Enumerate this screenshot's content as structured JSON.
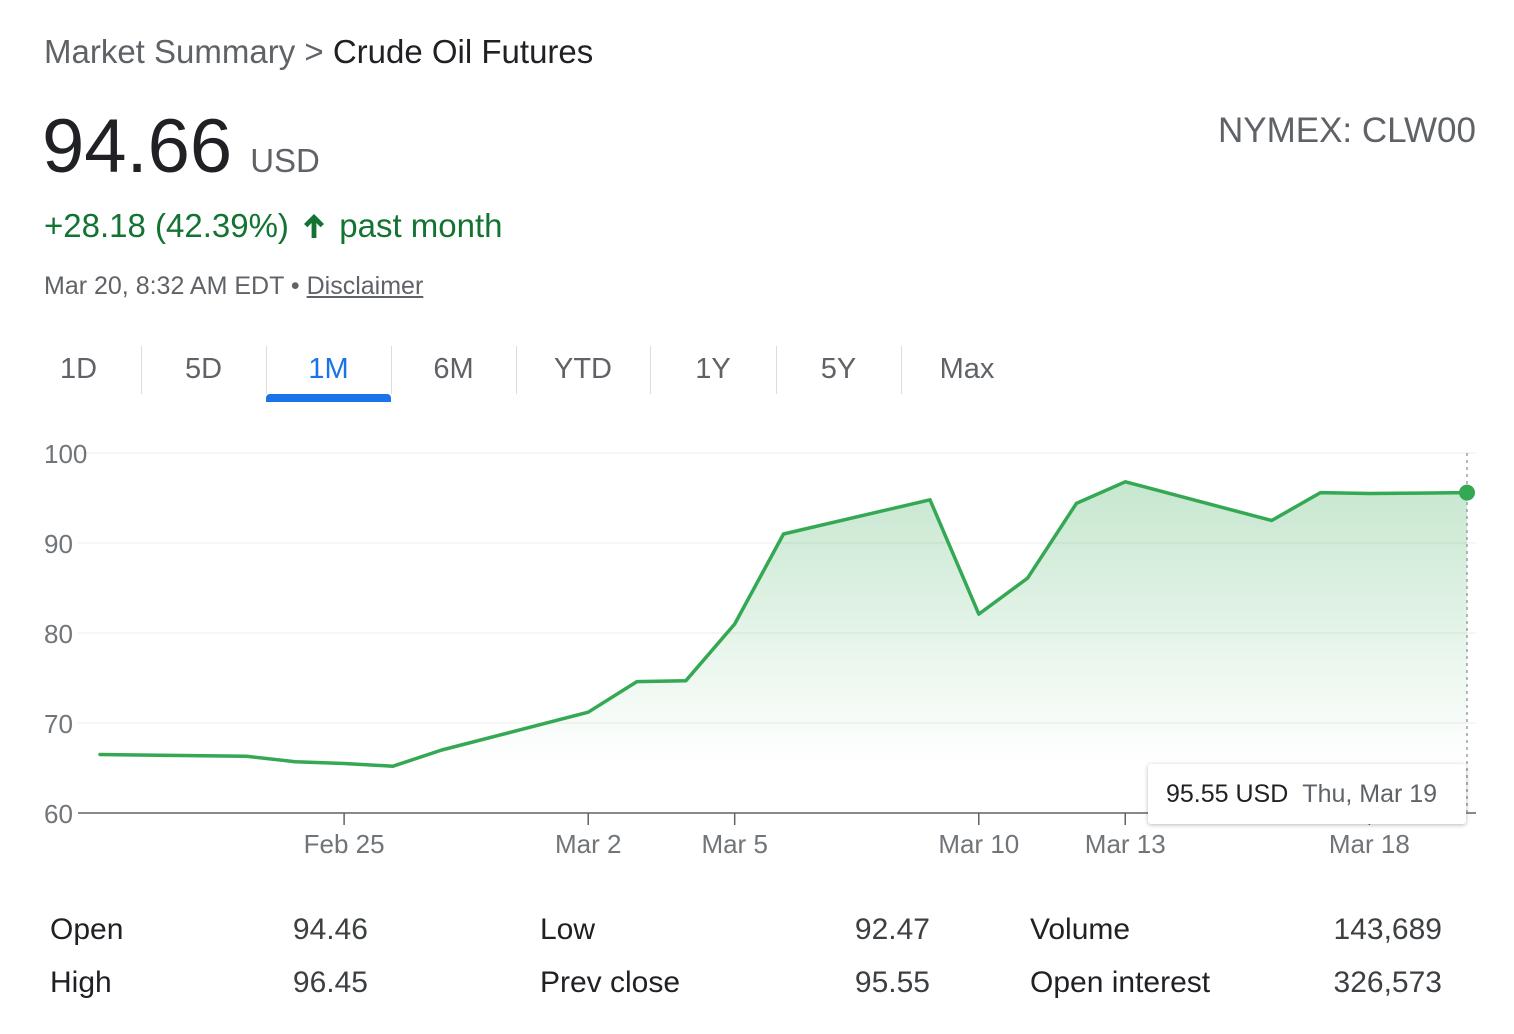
{
  "breadcrumb": {
    "root": "Market Summary",
    "separator": ">",
    "current": "Crude Oil Futures"
  },
  "quote": {
    "price": "94.66",
    "currency": "USD",
    "ticker": "NYMEX: CLW00",
    "change": "+28.18 (42.39%)",
    "change_period": "past month",
    "timestamp": "Mar 20, 8:32 AM EDT",
    "bullet": "•",
    "disclaimer": "Disclaimer"
  },
  "tabs": [
    {
      "label": "1D"
    },
    {
      "label": "5D"
    },
    {
      "label": "1M",
      "active": true
    },
    {
      "label": "6M"
    },
    {
      "label": "YTD"
    },
    {
      "label": "1Y"
    },
    {
      "label": "5Y"
    },
    {
      "label": "Max"
    }
  ],
  "colors": {
    "up": "#137333",
    "line": "#34a853",
    "accent": "#1a73e8"
  },
  "tooltip": {
    "value": "95.55 USD",
    "date": "Thu, Mar 19"
  },
  "chart_data": {
    "type": "area",
    "title": "",
    "xlabel": "",
    "ylabel": "",
    "ylim": [
      60,
      100
    ],
    "yticks": [
      60,
      70,
      80,
      90,
      100
    ],
    "grid": true,
    "x": [
      "2026-02-20",
      "2026-02-23",
      "2026-02-24",
      "2026-02-25",
      "2026-02-26",
      "2026-02-27",
      "2026-03-02",
      "2026-03-03",
      "2026-03-04",
      "2026-03-05",
      "2026-03-06",
      "2026-03-09",
      "2026-03-10",
      "2026-03-11",
      "2026-03-12",
      "2026-03-13",
      "2026-03-16",
      "2026-03-17",
      "2026-03-18",
      "2026-03-19",
      "2026-03-20"
    ],
    "xticks": [
      {
        "x": "2026-02-25",
        "label": "Feb 25"
      },
      {
        "x": "2026-03-02",
        "label": "Mar 2"
      },
      {
        "x": "2026-03-05",
        "label": "Mar 5"
      },
      {
        "x": "2026-03-10",
        "label": "Mar 10"
      },
      {
        "x": "2026-03-13",
        "label": "Mar 13"
      },
      {
        "x": "2026-03-18",
        "label": "Mar 18"
      }
    ],
    "series": [
      {
        "values": [
          66.5,
          66.3,
          65.7,
          65.5,
          65.2,
          67.0,
          71.2,
          74.6,
          74.7,
          81.0,
          91.0,
          94.8,
          82.1,
          86.1,
          94.4,
          96.8,
          92.5,
          95.6,
          95.5,
          95.55,
          95.6
        ]
      }
    ],
    "highlight": {
      "x": "2026-03-20",
      "y": 95.6
    }
  },
  "stats": {
    "open": {
      "label": "Open",
      "value": "94.46"
    },
    "high": {
      "label": "High",
      "value": "96.45"
    },
    "low": {
      "label": "Low",
      "value": "92.47"
    },
    "prev_close": {
      "label": "Prev close",
      "value": "95.55"
    },
    "volume": {
      "label": "Volume",
      "value": "143,689"
    },
    "open_interest": {
      "label": "Open interest",
      "value": "326,573"
    }
  }
}
